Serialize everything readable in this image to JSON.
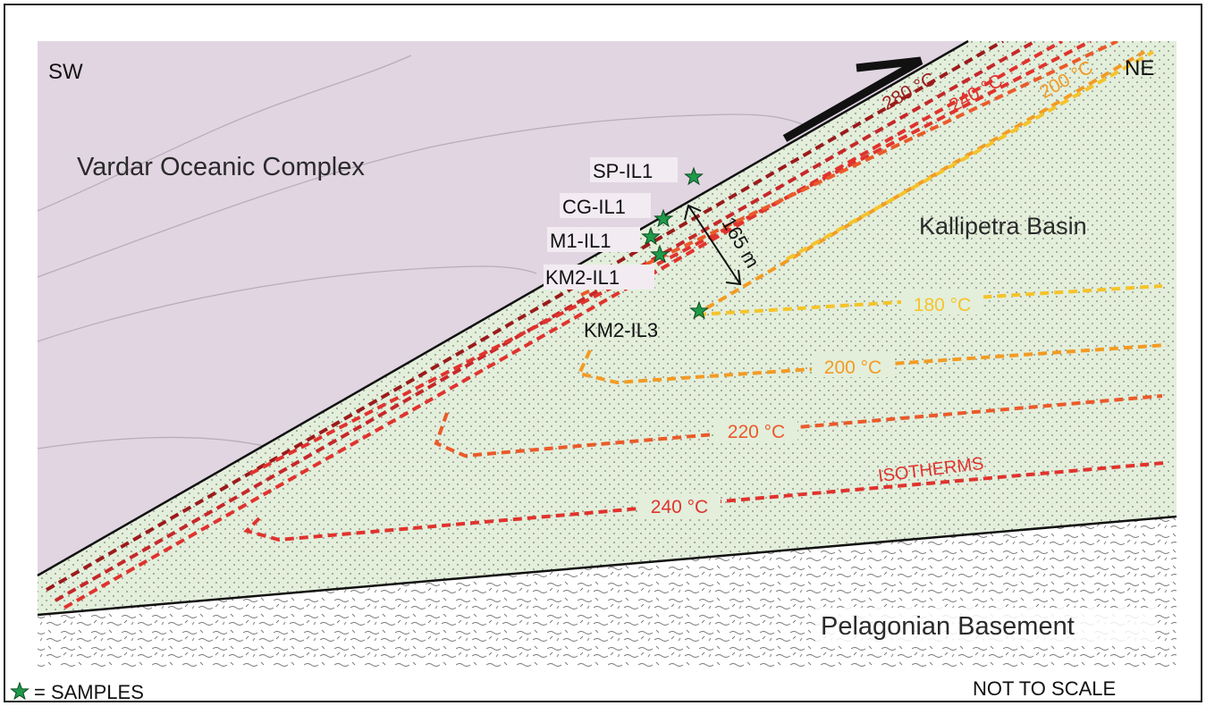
{
  "labels": {
    "sw": "SW",
    "ne": "NE",
    "vardar": "Vardar Oceanic Complex",
    "kallipetra": "Kallipetra Basin",
    "pelagonian": "Pelagonian Basement",
    "isotherms": "ISOTHERMS",
    "thickness": "165 m",
    "legend": "= SAMPLES",
    "not_to_scale": "NOT TO SCALE"
  },
  "samples": {
    "sp": "SP-IL1",
    "cg": "CG-IL1",
    "m1": "M1-IL1",
    "km2_1": "KM2-IL1",
    "km2_3": "KM2-IL3"
  },
  "isotherm_labels": {
    "upper_280": "280 °C",
    "upper_240": "240 °C",
    "upper_200": "200 °C",
    "lower_180": "180 °C",
    "lower_200": "200 °C",
    "lower_220": "220 °C",
    "lower_240": "240 °C"
  },
  "colors": {
    "vardar_fill": "#e1d5e2",
    "basin_fill": "#e3efdb",
    "c280": "#9b1b1b",
    "c260": "#c6282a",
    "c240": "#e0332e",
    "c220": "#ea5a2a",
    "c200": "#f29b24",
    "c180": "#f5c32c",
    "sample_star": "#1f9a4a"
  }
}
